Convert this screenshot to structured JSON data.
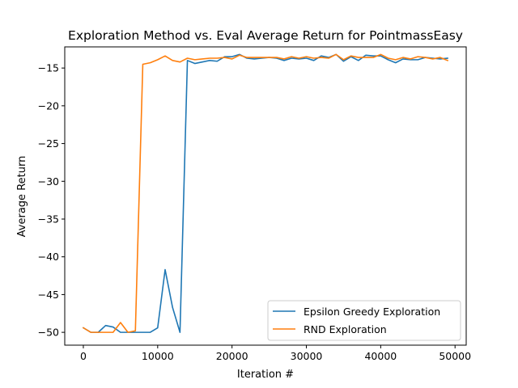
{
  "chart_data": {
    "type": "line",
    "title": "Exploration Method vs. Eval Average Return for PointmassEasy",
    "xlabel": "Iteration #",
    "ylabel": "Average Return",
    "xlim": [
      -2500,
      51500
    ],
    "ylim": [
      -51.7,
      -12.2
    ],
    "xticks": [
      0,
      10000,
      20000,
      30000,
      40000,
      50000
    ],
    "xtick_labels": [
      "0",
      "10000",
      "20000",
      "30000",
      "40000",
      "50000"
    ],
    "yticks": [
      -50,
      -45,
      -40,
      -35,
      -30,
      -25,
      -20,
      -15
    ],
    "ytick_labels": [
      "−50",
      "−45",
      "−40",
      "−35",
      "−30",
      "−25",
      "−20",
      "−15"
    ],
    "grid": false,
    "legend_position": "lower-right",
    "series": [
      {
        "name": "Epsilon Greedy Exploration",
        "color": "#1f77b4",
        "x": [
          0,
          1000,
          2000,
          3000,
          4000,
          5000,
          6000,
          7000,
          8000,
          9000,
          10000,
          11000,
          12000,
          13000,
          14000,
          15000,
          16000,
          17000,
          18000,
          19000,
          20000,
          21000,
          22000,
          23000,
          24000,
          25000,
          26000,
          27000,
          28000,
          29000,
          30000,
          31000,
          32000,
          33000,
          34000,
          35000,
          36000,
          37000,
          38000,
          39000,
          40000,
          41000,
          42000,
          43000,
          44000,
          45000,
          46000,
          47000,
          48000,
          49000
        ],
        "y": [
          -49.4,
          -50.0,
          -50.0,
          -49.1,
          -49.3,
          -50.0,
          -50.0,
          -50.0,
          -50.0,
          -50.0,
          -49.4,
          -41.7,
          -46.7,
          -50.0,
          -14.0,
          -14.4,
          -14.2,
          -14.0,
          -14.1,
          -13.5,
          -13.5,
          -13.2,
          -13.7,
          -13.8,
          -13.7,
          -13.6,
          -13.7,
          -14.0,
          -13.7,
          -13.8,
          -13.7,
          -14.0,
          -13.4,
          -13.6,
          -13.2,
          -14.1,
          -13.5,
          -14.0,
          -13.3,
          -13.4,
          -13.4,
          -13.9,
          -14.3,
          -13.8,
          -13.9,
          -13.9,
          -13.6,
          -13.7,
          -13.8,
          -13.7
        ]
      },
      {
        "name": "RND Exploration",
        "color": "#ff7f0e",
        "x": [
          0,
          1000,
          2000,
          3000,
          4000,
          5000,
          6000,
          7000,
          8000,
          9000,
          10000,
          11000,
          12000,
          13000,
          14000,
          15000,
          16000,
          17000,
          18000,
          19000,
          20000,
          21000,
          22000,
          23000,
          24000,
          25000,
          26000,
          27000,
          28000,
          29000,
          30000,
          31000,
          32000,
          33000,
          34000,
          35000,
          36000,
          37000,
          38000,
          39000,
          40000,
          41000,
          42000,
          43000,
          44000,
          45000,
          46000,
          47000,
          48000,
          49000
        ],
        "y": [
          -49.4,
          -50.0,
          -50.0,
          -50.0,
          -50.0,
          -48.7,
          -50.0,
          -49.8,
          -14.5,
          -14.3,
          -13.9,
          -13.4,
          -14.0,
          -14.2,
          -13.7,
          -13.9,
          -13.8,
          -13.7,
          -13.7,
          -13.6,
          -13.8,
          -13.3,
          -13.6,
          -13.6,
          -13.6,
          -13.6,
          -13.6,
          -13.8,
          -13.5,
          -13.7,
          -13.5,
          -13.7,
          -13.6,
          -13.7,
          -13.2,
          -13.9,
          -13.4,
          -13.6,
          -13.6,
          -13.6,
          -13.2,
          -13.7,
          -13.9,
          -13.6,
          -13.8,
          -13.5,
          -13.6,
          -13.8,
          -13.6,
          -14.0
        ]
      }
    ]
  }
}
